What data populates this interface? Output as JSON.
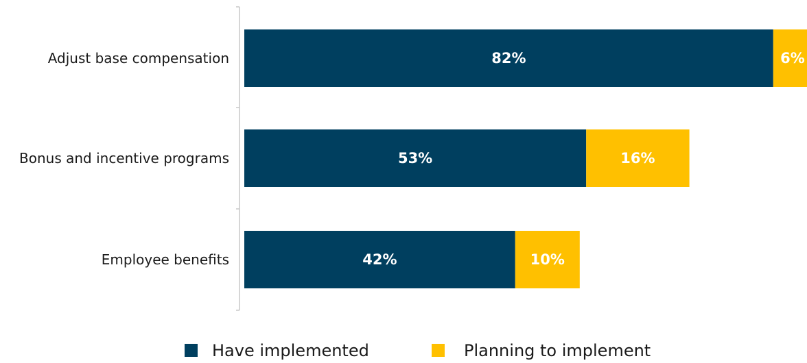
{
  "chart_data": {
    "type": "bar",
    "orientation": "horizontal",
    "stacked": true,
    "categories": [
      "Adjust base compensation",
      "Bonus and incentive programs",
      "Employee benefits"
    ],
    "series": [
      {
        "name": "Have implemented",
        "values": [
          82,
          53,
          42
        ],
        "labels": [
          "82%",
          "53%",
          "42%"
        ],
        "color": "#003f5f"
      },
      {
        "name": "Planning to implement",
        "values": [
          6,
          16,
          10
        ],
        "labels": [
          "6%",
          "16%",
          "10%"
        ],
        "color": "#ffc000"
      }
    ],
    "xlim": [
      0,
      88
    ],
    "grid": false,
    "legend_position": "bottom"
  }
}
